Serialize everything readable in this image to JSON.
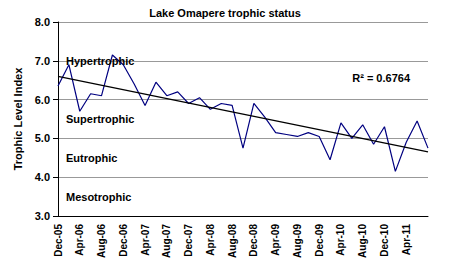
{
  "chart_data": {
    "type": "line",
    "title": "Lake Omapere trophic status",
    "y_label": "Trophic Level Index",
    "categories": [
      "Dec-05",
      null,
      "Apr-06",
      null,
      "Aug-06",
      null,
      "Dec-06",
      null,
      "Apr-07",
      null,
      "Aug-07",
      null,
      "Dec-07",
      null,
      "Apr-08",
      null,
      "Aug-08",
      null,
      "Dec-08",
      null,
      "Apr-09",
      null,
      "Aug-09",
      null,
      "Dec-09",
      null,
      "Apr-10",
      null,
      "Aug-10",
      null,
      "Dec-10",
      null,
      "Apr-11",
      null,
      null
    ],
    "values": [
      6.35,
      6.9,
      5.7,
      6.15,
      6.1,
      7.15,
      6.9,
      6.4,
      5.85,
      6.45,
      6.1,
      6.2,
      5.9,
      6.05,
      5.75,
      5.9,
      5.85,
      4.75,
      5.9,
      5.55,
      5.15,
      5.1,
      5.05,
      5.15,
      5.05,
      4.45,
      5.4,
      5.0,
      5.35,
      4.85,
      5.3,
      4.15,
      4.9,
      5.45,
      4.75
    ],
    "color": "#000080",
    "trendline": {
      "start": 6.6,
      "end": 4.65,
      "color": "#000000",
      "label": "R² = 0.6764"
    },
    "annotations": [
      {
        "text": "Hypertrophic",
        "y": 7.0
      },
      {
        "text": "Supertrophic",
        "y": 5.5
      },
      {
        "text": "Eutrophic",
        "y": 4.5
      },
      {
        "text": "Mesotrophic",
        "y": 3.5
      }
    ],
    "ylim": [
      3,
      8
    ],
    "yticks": [
      {
        "value": 3,
        "label": "3.0"
      },
      {
        "value": 4,
        "label": "4.0"
      },
      {
        "value": 5,
        "label": "5.0"
      },
      {
        "value": 6,
        "label": "6.0"
      },
      {
        "value": 7,
        "label": "7.0"
      },
      {
        "value": 8,
        "label": "8.0"
      }
    ],
    "grid": true
  }
}
